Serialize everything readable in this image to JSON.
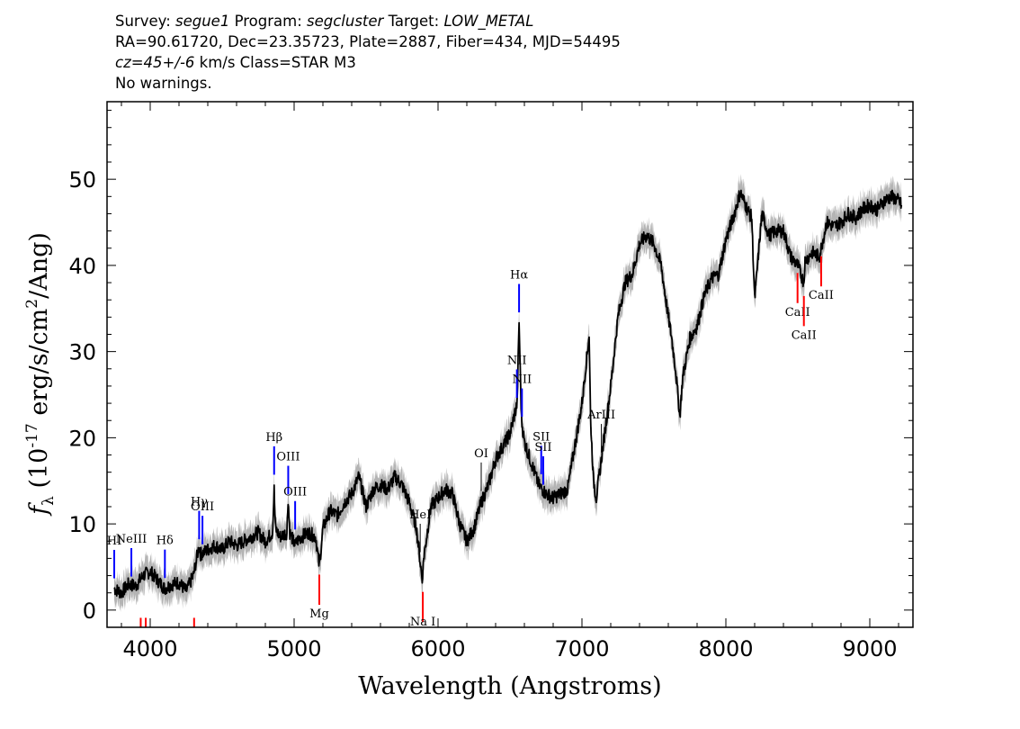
{
  "header": {
    "survey_label": "Survey: ",
    "survey": "segue1",
    "program_label": " Program: ",
    "program": "segcluster",
    "target_label": " Target: ",
    "target": "LOW_METAL",
    "line2": "RA=90.61720, Dec=23.35723, Plate=2887, Fiber=434, MJD=54495",
    "cz": "cz=45+/-6",
    "cz_rest": " km/s Class=STAR M3",
    "line4": "No warnings."
  },
  "chart_data": {
    "type": "line",
    "xlabel": "Wavelength (Angstroms)",
    "ylabel": "f_λ (10^-17 erg/s/cm^2/Ang)",
    "xlim": [
      3700,
      9300
    ],
    "ylim": [
      -2,
      59
    ],
    "x_ticks": [
      4000,
      5000,
      6000,
      7000,
      8000,
      9000
    ],
    "y_ticks": [
      0,
      10,
      20,
      30,
      40,
      50
    ],
    "colors": {
      "spectrum": "#000000",
      "error": "#b4b4b4",
      "emission": "#0000ff",
      "absorption": "#ff0000",
      "sky": "#000000"
    },
    "series": [
      {
        "x": [
          3750,
          3800,
          3850,
          3900,
          3950,
          4000,
          4050,
          4100,
          4150,
          4200,
          4250,
          4300,
          4340,
          4350,
          4400,
          4450,
          4500,
          4550,
          4600,
          4650,
          4700,
          4750,
          4800,
          4850,
          4861,
          4870,
          4900,
          4950,
          4958,
          4970,
          5007,
          5020,
          5050,
          5100,
          5150,
          5175,
          5200,
          5250,
          5300,
          5350,
          5400,
          5450,
          5500,
          5550,
          5600,
          5650,
          5700,
          5750,
          5800,
          5850,
          5890,
          5900,
          5950,
          6000,
          6050,
          6100,
          6150,
          6200,
          6250,
          6300,
          6350,
          6400,
          6450,
          6500,
          6550,
          6563,
          6580,
          6600,
          6650,
          6700,
          6750,
          6800,
          6850,
          6900,
          6950,
          7000,
          7050,
          7060,
          7080,
          7100,
          7150,
          7200,
          7250,
          7300,
          7350,
          7400,
          7450,
          7500,
          7550,
          7600,
          7620,
          7650,
          7680,
          7700,
          7750,
          7800,
          7850,
          7900,
          7950,
          8000,
          8050,
          8100,
          8150,
          8180,
          8200,
          8250,
          8300,
          8350,
          8400,
          8450,
          8500,
          8542,
          8550,
          8600,
          8650,
          8662,
          8700,
          8750,
          8800,
          8850,
          8900,
          8950,
          9000,
          9050,
          9100,
          9150,
          9200,
          9220
        ],
        "y": [
          2.5,
          2.0,
          3.0,
          2.8,
          4.0,
          4.5,
          3.5,
          2.5,
          3.0,
          3.2,
          2.2,
          4.0,
          7.5,
          6.5,
          7.0,
          7.5,
          7.0,
          8.0,
          7.5,
          8.0,
          8.5,
          9.0,
          8.0,
          9.0,
          14.0,
          9.5,
          8.5,
          9.0,
          13.0,
          9.0,
          7.5,
          8.0,
          8.5,
          9.0,
          8.5,
          5.0,
          9.5,
          11.5,
          11.0,
          12.5,
          13.5,
          15.5,
          12.0,
          14.0,
          14.5,
          14.0,
          15.5,
          14.5,
          12.5,
          9.5,
          3.5,
          6.0,
          12.0,
          13.0,
          14.0,
          13.5,
          10.0,
          8.0,
          9.5,
          12.5,
          14.5,
          17.5,
          19.0,
          20.5,
          24.0,
          33.5,
          22.0,
          19.5,
          17.0,
          14.5,
          13.5,
          13.0,
          13.5,
          14.0,
          19.0,
          24.0,
          32.0,
          22.0,
          15.0,
          13.0,
          19.5,
          26.0,
          34.0,
          38.0,
          39.0,
          42.5,
          43.5,
          42.5,
          40.0,
          34.0,
          32.0,
          28.0,
          22.5,
          27.0,
          31.5,
          33.0,
          36.5,
          38.5,
          39.0,
          43.0,
          45.5,
          48.5,
          46.5,
          45.5,
          36.0,
          46.0,
          43.5,
          44.0,
          44.0,
          41.0,
          40.0,
          38.0,
          40.5,
          41.5,
          41.0,
          42.0,
          45.0,
          44.5,
          45.0,
          46.0,
          45.5,
          46.5,
          47.0,
          46.5,
          47.5,
          48.0,
          47.5,
          47.0
        ]
      }
    ],
    "lines": [
      {
        "label": "HI",
        "wave": 3750,
        "kind": "emission"
      },
      {
        "label": "NeIII",
        "wave": 3869,
        "kind": "emission"
      },
      {
        "label": "Hδ",
        "wave": 4102,
        "kind": "emission"
      },
      {
        "label": "Hγ",
        "wave": 4340,
        "kind": "emission"
      },
      {
        "label": "OIII",
        "wave": 4363,
        "kind": "emission"
      },
      {
        "label": "Hβ",
        "wave": 4861,
        "kind": "emission"
      },
      {
        "label": "OIII",
        "wave": 4959,
        "kind": "emission"
      },
      {
        "label": "OIII",
        "wave": 5007,
        "kind": "emission"
      },
      {
        "label": "HeI",
        "wave": 5876,
        "kind": "sky"
      },
      {
        "label": "OI",
        "wave": 6300,
        "kind": "sky"
      },
      {
        "label": "NII",
        "wave": 6548,
        "kind": "emission"
      },
      {
        "label": "Hα",
        "wave": 6563,
        "kind": "emission"
      },
      {
        "label": "NII",
        "wave": 6583,
        "kind": "emission"
      },
      {
        "label": "SII",
        "wave": 6717,
        "kind": "emission"
      },
      {
        "label": "SII",
        "wave": 6731,
        "kind": "emission"
      },
      {
        "label": "ArIII",
        "wave": 7135,
        "kind": "sky"
      },
      {
        "label": "Mg",
        "wave": 5175,
        "kind": "absorption"
      },
      {
        "label": "Na I",
        "wave": 5894,
        "kind": "absorption"
      },
      {
        "label": "CaII",
        "wave": 8498,
        "kind": "absorption"
      },
      {
        "label": "CaII",
        "wave": 8542,
        "kind": "absorption"
      },
      {
        "label": "CaII",
        "wave": 8662,
        "kind": "absorption"
      },
      {
        "label": "",
        "wave": 3934,
        "kind": "absorption"
      },
      {
        "label": "",
        "wave": 3969,
        "kind": "absorption"
      },
      {
        "label": "",
        "wave": 4305,
        "kind": "absorption"
      }
    ]
  }
}
